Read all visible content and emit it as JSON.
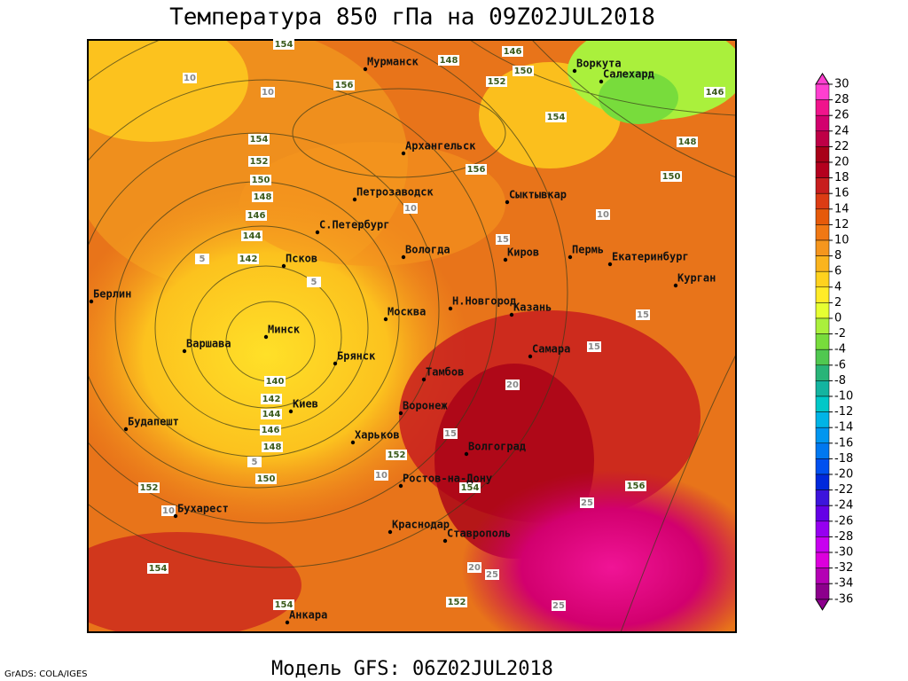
{
  "title": "Температура 850 гПа на 09Z02JUL2018",
  "footer": "Модель GFS: 06Z02JUL2018",
  "credit": "GrADS: COLA/IGES",
  "cities": [
    "Мурманск",
    "Воркута",
    "Салехард",
    "Архангельск",
    "Сыктывкар",
    "Петрозаводск",
    "С.Петербург",
    "Вологда",
    "Киров",
    "Пермь",
    "Екатеринбург",
    "Курган",
    "Псков",
    "Берлин",
    "Москва",
    "Н.Новгород",
    "Казань",
    "Минск",
    "Варшава",
    "Самара",
    "Брянск",
    "Тамбов",
    "Воронеж",
    "Киев",
    "Будапешт",
    "Харьков",
    "Волгоград",
    "Ростов-на-Дону",
    "Бухарест",
    "Краснодар",
    "Ставрополь",
    "Анкара"
  ],
  "contour_labels": [
    154,
    148,
    146,
    150,
    156,
    152,
    154,
    146,
    148,
    156,
    150,
    154,
    152,
    150,
    148,
    146,
    144,
    142,
    140,
    142,
    144,
    146,
    148,
    152,
    150,
    152,
    154,
    156,
    154,
    152,
    154,
    10,
    10,
    5,
    5,
    10,
    10,
    15,
    15,
    15,
    20,
    15,
    10,
    10,
    5,
    25,
    20,
    25,
    25
  ],
  "colorbar": {
    "ticks": [
      30,
      28,
      26,
      24,
      22,
      20,
      18,
      16,
      14,
      12,
      10,
      8,
      6,
      4,
      2,
      0,
      -2,
      -4,
      -6,
      -8,
      -10,
      -12,
      -14,
      -16,
      -18,
      -20,
      -22,
      -24,
      -26,
      -28,
      -30,
      -32,
      -34,
      -36
    ],
    "colors": [
      "#ff3fd0",
      "#f0148c",
      "#d2006e",
      "#be0046",
      "#a80018",
      "#b4001e",
      "#c81e1e",
      "#dc3c14",
      "#e65a0a",
      "#f07814",
      "#f5961e",
      "#fab41e",
      "#ffd21e",
      "#ffeb28",
      "#e6ff32",
      "#aaf03c",
      "#78dc3c",
      "#50c850",
      "#28b478",
      "#14b4a0",
      "#00c8c8",
      "#00b4e6",
      "#0096f0",
      "#0078f0",
      "#0050f0",
      "#0028dc",
      "#3c14dc",
      "#6400e6",
      "#9600f0",
      "#c800f0",
      "#dc00dc",
      "#b400b4",
      "#8c008c"
    ]
  }
}
